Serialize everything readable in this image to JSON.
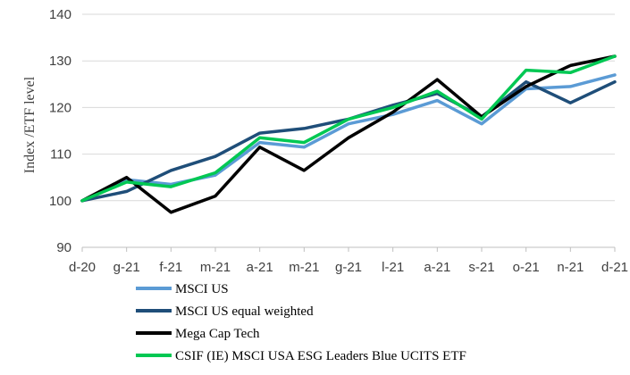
{
  "chart_data": {
    "type": "line",
    "title": "",
    "xlabel": "",
    "ylabel": "Index /ETF level",
    "ylim": [
      90,
      140
    ],
    "yticks": [
      "90",
      "100",
      "110",
      "120",
      "130",
      "140"
    ],
    "grid": "horizontal",
    "legend_position": "bottom",
    "x": [
      "d-20",
      "g-21",
      "f-21",
      "m-21",
      "a-21",
      "m-21",
      "g-21",
      "l-21",
      "a-21",
      "s-21",
      "o-21",
      "n-21",
      "d-21"
    ],
    "series": [
      {
        "name": "MSCI US",
        "color": "#5b9bd5",
        "values": [
          100,
          104.5,
          103.5,
          105.5,
          112.5,
          111.5,
          116.5,
          118.5,
          121.5,
          116.5,
          124,
          124.5,
          127
        ]
      },
      {
        "name": "MSCI US equal weighted",
        "color": "#1f4e79",
        "values": [
          100,
          102,
          106.5,
          109.5,
          114.5,
          115.5,
          117.5,
          120.5,
          123,
          118,
          125.5,
          121,
          125.5
        ]
      },
      {
        "name": "Mega Cap Tech",
        "color": "#000000",
        "values": [
          100,
          105,
          97.5,
          101,
          111.5,
          106.5,
          113.5,
          119,
          126,
          118,
          124.5,
          129,
          131
        ]
      },
      {
        "name": "CSIF (IE) MSCI USA ESG Leaders Blue UCITS ETF",
        "color": "#00c853",
        "values": [
          100,
          104,
          103,
          106,
          113.5,
          112.5,
          117.5,
          120,
          123.5,
          117.5,
          128,
          127.5,
          131
        ]
      }
    ]
  }
}
